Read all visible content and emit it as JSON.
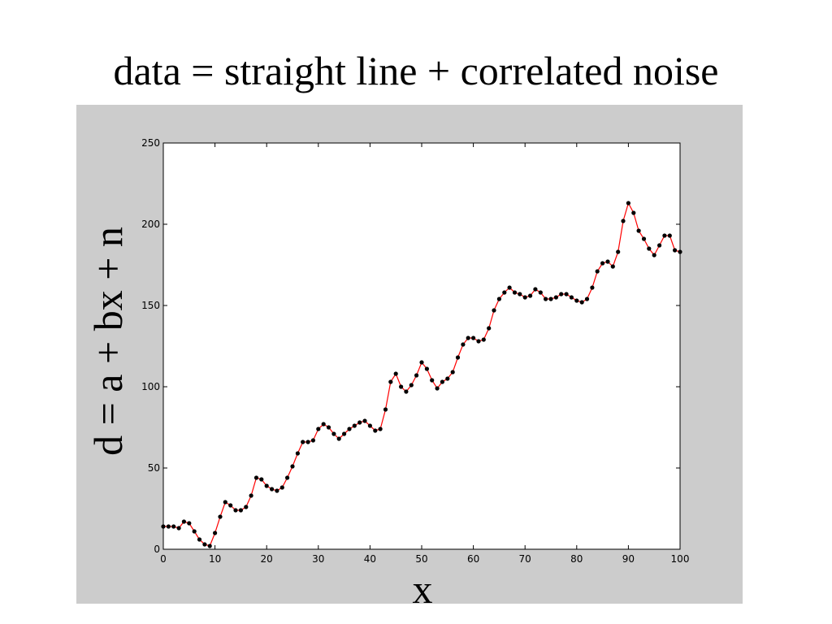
{
  "slide": {
    "title": "data = straight line + correlated noise"
  },
  "colors": {
    "panel_background": "#cccccc",
    "plot_background": "#ffffff",
    "line": "#ff0000",
    "marker": "#000000"
  },
  "chart_data": {
    "type": "line",
    "title": "",
    "xlabel": "x",
    "ylabel": "d = a + bx + n",
    "xlim": [
      0,
      100
    ],
    "ylim": [
      0,
      250
    ],
    "x_ticks": [
      0,
      10,
      20,
      30,
      40,
      50,
      60,
      70,
      80,
      90,
      100
    ],
    "y_ticks": [
      0,
      50,
      100,
      150,
      200,
      250
    ],
    "grid": false,
    "markers": true,
    "series": [
      {
        "x": [
          0,
          1,
          2,
          3,
          4,
          5,
          6,
          7,
          8,
          9,
          10,
          11,
          12,
          13,
          14,
          15,
          16,
          17,
          18,
          19,
          20,
          21,
          22,
          23,
          24,
          25,
          26,
          27,
          28,
          29,
          30,
          31,
          32,
          33,
          34,
          35,
          36,
          37,
          38,
          39,
          40,
          41,
          42,
          43,
          44,
          45,
          46,
          47,
          48,
          49,
          50,
          51,
          52,
          53,
          54,
          55,
          56,
          57,
          58,
          59,
          60,
          61,
          62,
          63,
          64,
          65,
          66,
          67,
          68,
          69,
          70,
          71,
          72,
          73,
          74,
          75,
          76,
          77,
          78,
          79,
          80,
          81,
          82,
          83,
          84,
          85,
          86,
          87,
          88,
          89,
          90,
          91,
          92,
          93,
          94,
          95,
          96,
          97,
          98,
          99,
          100
        ],
        "values": [
          14,
          14,
          14,
          13,
          17,
          16,
          11,
          6,
          3,
          2,
          10,
          20,
          29,
          27,
          24,
          24,
          26,
          33,
          44,
          43,
          39,
          37,
          36,
          38,
          44,
          51,
          59,
          66,
          66,
          67,
          74,
          77,
          75,
          71,
          68,
          71,
          74,
          76,
          78,
          79,
          76,
          73,
          74,
          86,
          103,
          108,
          100,
          97,
          101,
          107,
          115,
          111,
          104,
          99,
          103,
          105,
          109,
          118,
          126,
          130,
          130,
          128,
          129,
          136,
          147,
          154,
          158,
          161,
          158,
          157,
          155,
          156,
          160,
          158,
          154,
          154,
          155,
          157,
          157,
          155,
          153,
          152,
          154,
          161,
          171,
          176,
          177,
          174,
          183,
          202,
          213,
          207,
          196,
          191,
          185,
          181,
          187,
          193,
          193,
          184,
          183
        ]
      }
    ]
  }
}
